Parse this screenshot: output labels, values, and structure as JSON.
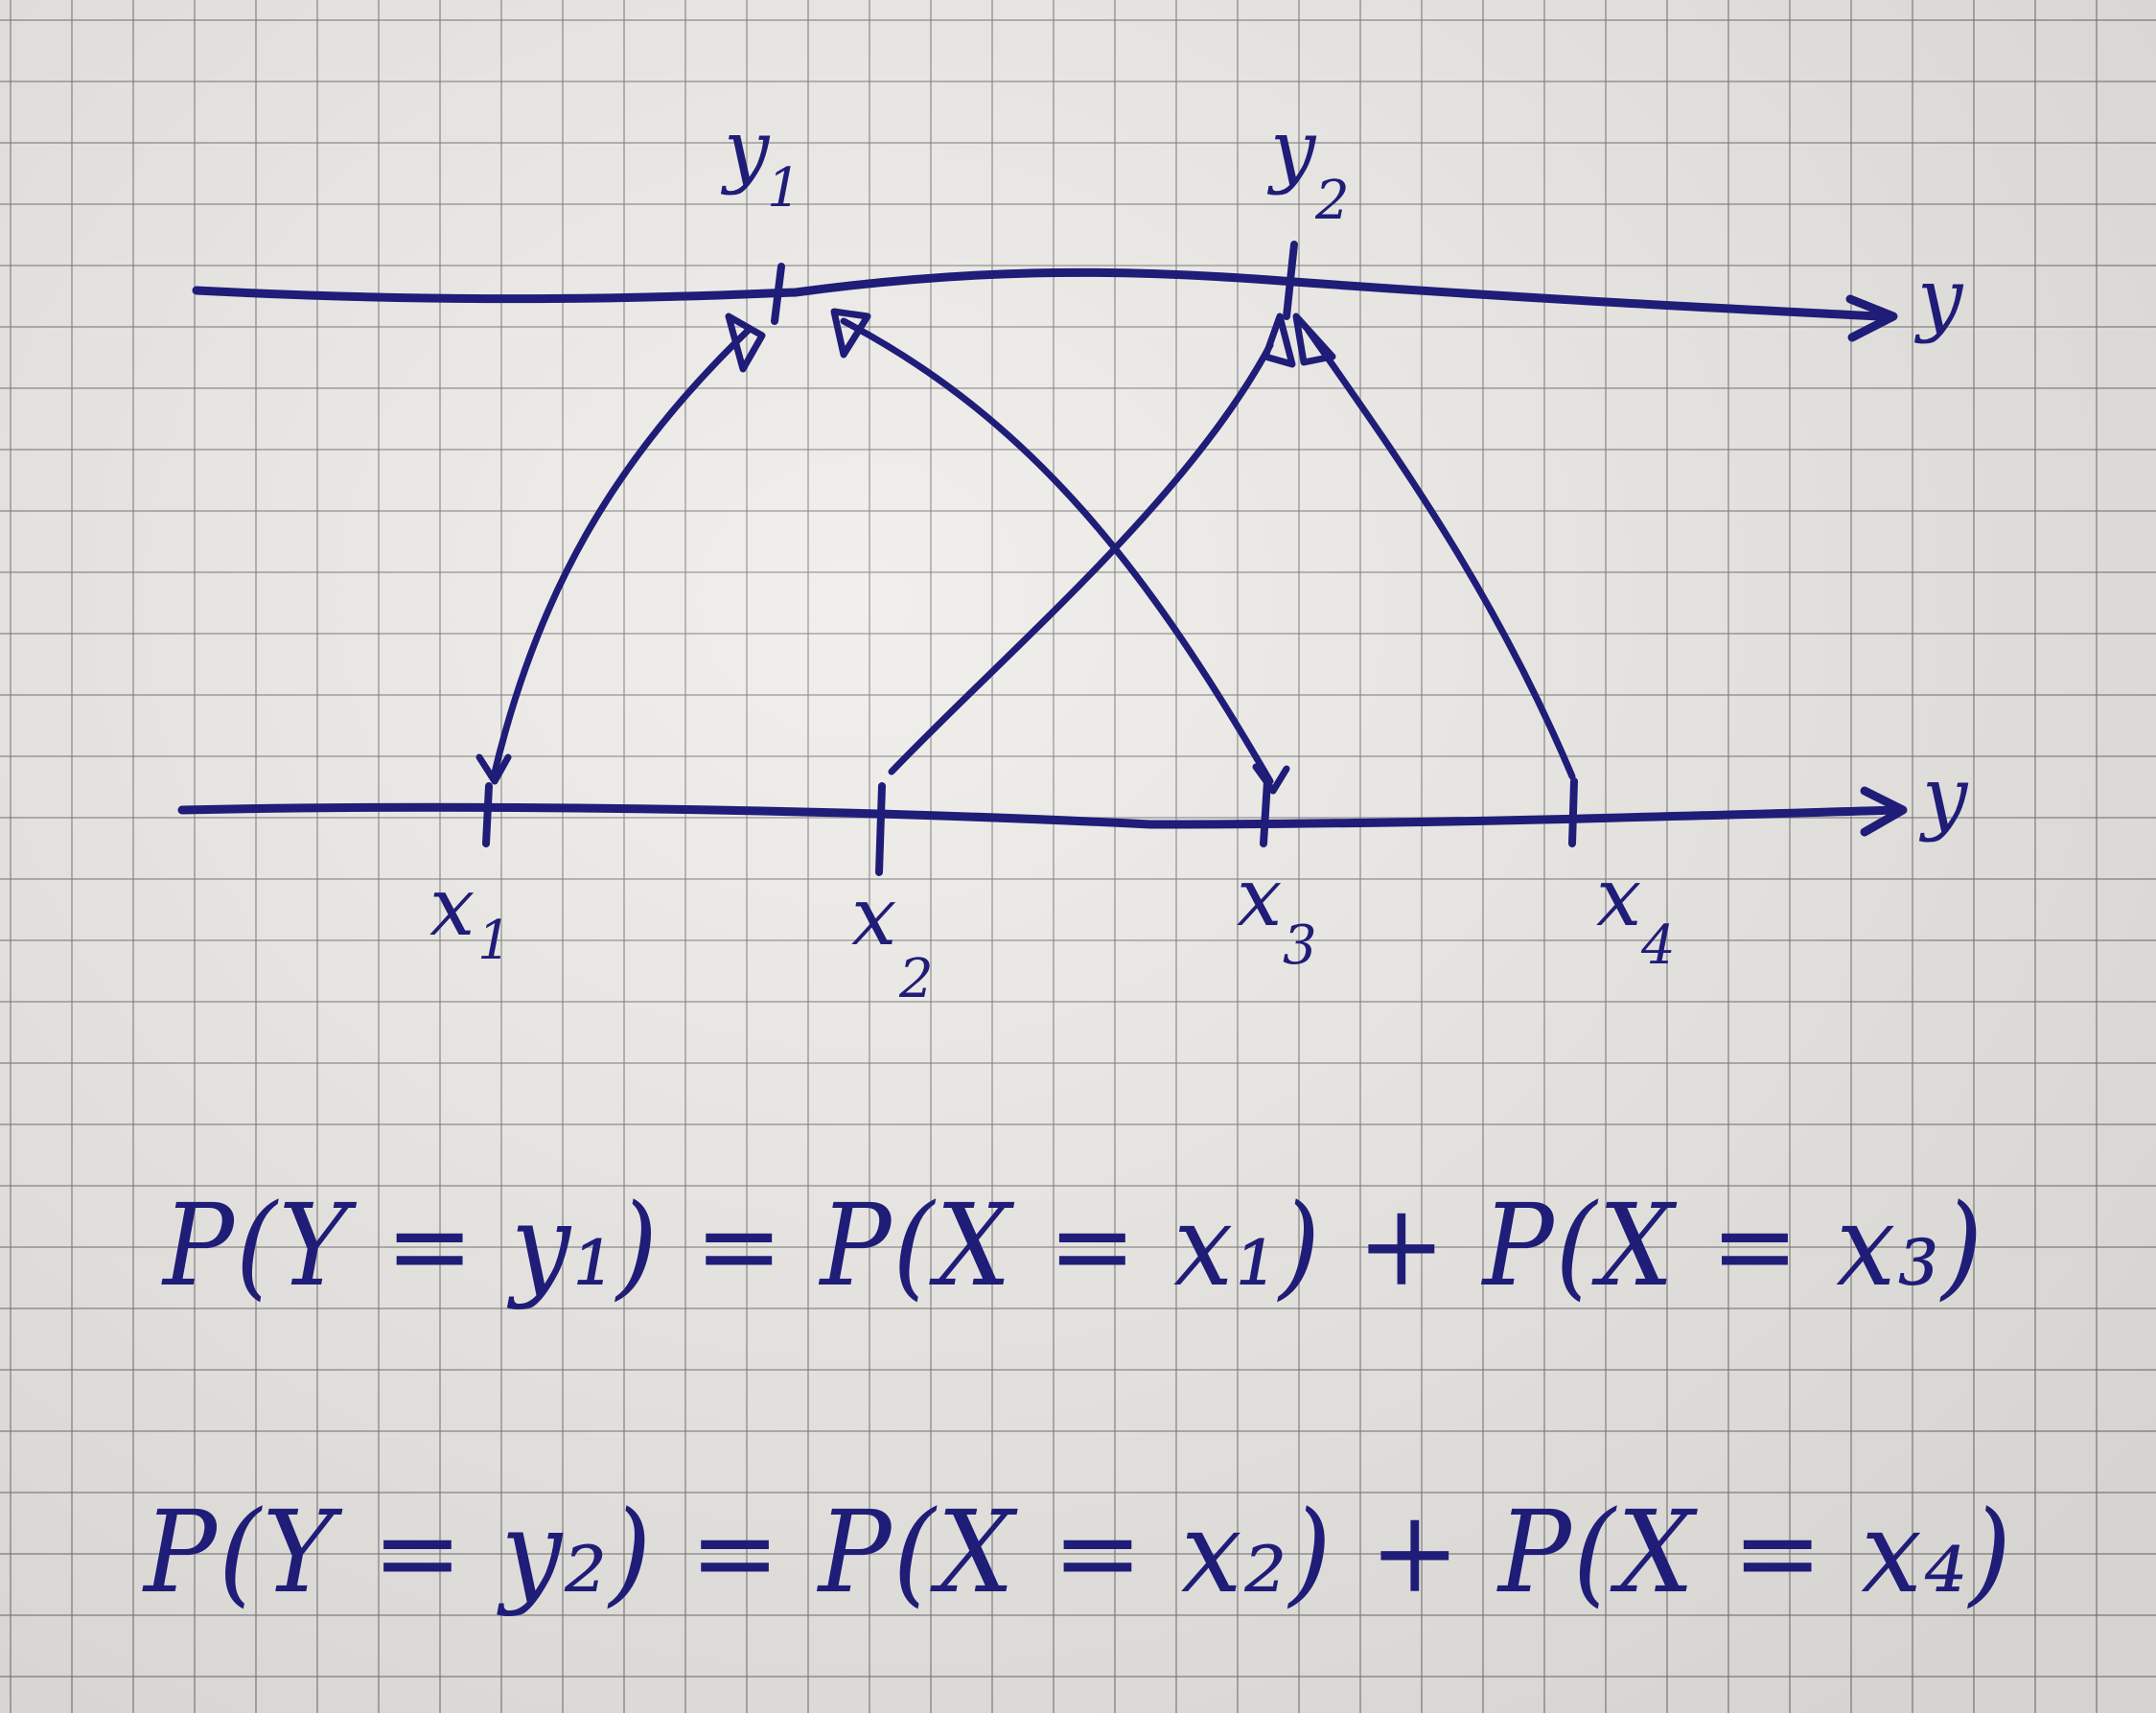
{
  "axes": {
    "top_axis_label": "y",
    "bottom_axis_label": "y"
  },
  "points": {
    "y1": {
      "letter": "y",
      "sub": "1"
    },
    "y2": {
      "letter": "y",
      "sub": "2"
    },
    "x1": {
      "letter": "x",
      "sub": "1"
    },
    "x2": {
      "letter": "x",
      "sub": "2"
    },
    "x3": {
      "letter": "x",
      "sub": "3"
    },
    "x4": {
      "letter": "x",
      "sub": "4"
    }
  },
  "equations": [
    "P(Y = y₁) = P(X = x₁) + P(X = x₃)",
    "P(Y = y₂) = P(X = x₂) + P(X = x₄)"
  ],
  "colors": {
    "ink": "#1f1d78",
    "paper": "#eeece8",
    "grid": "#787673"
  }
}
